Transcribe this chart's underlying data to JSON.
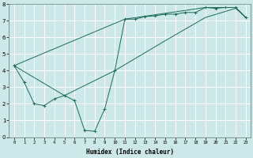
{
  "xlabel": "Humidex (Indice chaleur)",
  "bg_color": "#cce8e8",
  "grid_color": "#ffffff",
  "line_color": "#1a6b5a",
  "xlim": [
    -0.5,
    23.5
  ],
  "ylim": [
    0,
    8
  ],
  "series1_x": [
    0,
    1,
    2,
    3,
    4,
    5,
    6,
    7,
    8,
    9,
    10,
    11,
    12,
    13,
    14,
    15,
    16,
    17,
    18,
    19,
    20,
    21,
    22,
    23
  ],
  "series1_y": [
    4.3,
    3.3,
    2.0,
    1.9,
    2.3,
    2.5,
    2.2,
    0.4,
    0.35,
    1.7,
    4.0,
    7.1,
    7.1,
    7.25,
    7.3,
    7.4,
    7.4,
    7.5,
    7.5,
    7.8,
    7.75,
    7.8,
    7.8,
    7.2
  ],
  "series2_x": [
    0,
    11,
    19,
    22,
    23
  ],
  "series2_y": [
    4.3,
    7.1,
    7.8,
    7.8,
    7.2
  ],
  "series3_x": [
    0,
    5,
    10,
    15,
    19,
    22,
    23
  ],
  "series3_y": [
    4.3,
    2.5,
    4.0,
    5.8,
    7.2,
    7.75,
    7.2
  ],
  "xtick_labels": [
    "0",
    "1",
    "2",
    "3",
    "4",
    "5",
    "6",
    "7",
    "8",
    "9",
    "10",
    "11",
    "12",
    "13",
    "14",
    "15",
    "16",
    "17",
    "18",
    "19",
    "20",
    "21",
    "22",
    "23"
  ],
  "ytick_labels": [
    "0",
    "1",
    "2",
    "3",
    "4",
    "5",
    "6",
    "7",
    "8"
  ]
}
